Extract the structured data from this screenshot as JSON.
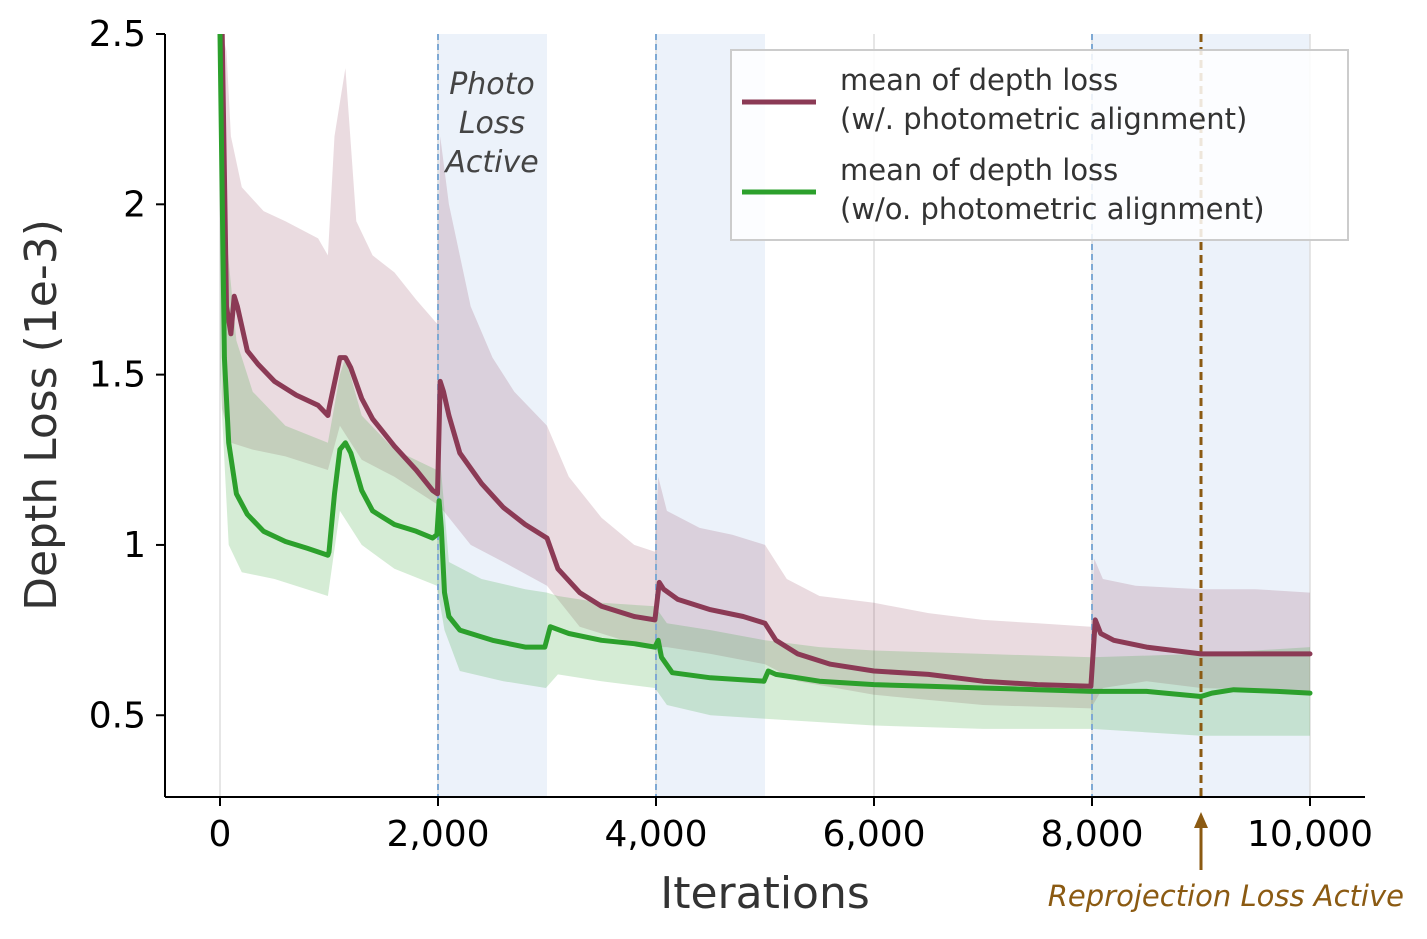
{
  "chart_data": {
    "type": "line",
    "xlabel": "Iterations",
    "ylabel": "Depth Loss (1e-3)",
    "xlim": [
      -500,
      10500
    ],
    "ylim": [
      0.26,
      2.5
    ],
    "x_ticks": [
      0,
      2000,
      4000,
      6000,
      8000,
      10000
    ],
    "x_tick_labels": [
      "0",
      "2,000",
      "4,000",
      "6,000",
      "8,000",
      "10,000"
    ],
    "y_ticks": [
      0.5,
      1,
      1.5,
      2,
      2.5
    ],
    "y_tick_labels": [
      "0.5",
      "1",
      "1.5",
      "2",
      "2.5"
    ],
    "grid": "vertical",
    "legend_position": "top-right",
    "shaded_regions": [
      [
        2000,
        3000
      ],
      [
        4000,
        5000
      ],
      [
        8000,
        10000
      ]
    ],
    "annotations": {
      "photo_lines": [
        "Photo",
        "Loss",
        "Active"
      ],
      "reprojection": {
        "text": "Reprojection Loss Active",
        "x": 9000
      }
    },
    "colors": {
      "with_alignment": "#8b3a55",
      "without_alignment": "#2ca02c",
      "shade": "#dce8f5",
      "dashed_blue": "#7ea9d4",
      "reprojection": "#8b5a12"
    },
    "series": [
      {
        "name": "mean of depth loss\n(w/. photometric alignment)",
        "legend_lines": [
          "mean of depth loss",
          "(w/. photometric alignment)"
        ],
        "color": "#8b3a55",
        "mean": [
          [
            20,
            2.5
          ],
          [
            60,
            1.7
          ],
          [
            100,
            1.62
          ],
          [
            130,
            1.73
          ],
          [
            160,
            1.7
          ],
          [
            250,
            1.57
          ],
          [
            350,
            1.53
          ],
          [
            500,
            1.48
          ],
          [
            700,
            1.44
          ],
          [
            900,
            1.41
          ],
          [
            990,
            1.38
          ],
          [
            1000,
            1.4
          ],
          [
            1100,
            1.55
          ],
          [
            1150,
            1.55
          ],
          [
            1200,
            1.52
          ],
          [
            1300,
            1.43
          ],
          [
            1400,
            1.37
          ],
          [
            1600,
            1.29
          ],
          [
            1800,
            1.22
          ],
          [
            1950,
            1.16
          ],
          [
            1995,
            1.15
          ],
          [
            2020,
            1.48
          ],
          [
            2050,
            1.45
          ],
          [
            2100,
            1.38
          ],
          [
            2200,
            1.27
          ],
          [
            2400,
            1.18
          ],
          [
            2600,
            1.11
          ],
          [
            2800,
            1.06
          ],
          [
            2950,
            1.03
          ],
          [
            3000,
            1.02
          ],
          [
            3100,
            0.93
          ],
          [
            3300,
            0.86
          ],
          [
            3500,
            0.82
          ],
          [
            3800,
            0.79
          ],
          [
            3990,
            0.78
          ],
          [
            4030,
            0.89
          ],
          [
            4070,
            0.87
          ],
          [
            4200,
            0.84
          ],
          [
            4500,
            0.81
          ],
          [
            4800,
            0.79
          ],
          [
            5000,
            0.77
          ],
          [
            5100,
            0.72
          ],
          [
            5300,
            0.68
          ],
          [
            5600,
            0.65
          ],
          [
            6000,
            0.63
          ],
          [
            6500,
            0.62
          ],
          [
            7000,
            0.6
          ],
          [
            7500,
            0.59
          ],
          [
            7990,
            0.585
          ],
          [
            8030,
            0.78
          ],
          [
            8080,
            0.74
          ],
          [
            8200,
            0.72
          ],
          [
            8500,
            0.7
          ],
          [
            9000,
            0.68
          ],
          [
            9500,
            0.68
          ],
          [
            10000,
            0.68
          ]
        ],
        "band_upper": [
          [
            20,
            2.5
          ],
          [
            60,
            2.45
          ],
          [
            100,
            2.2
          ],
          [
            200,
            2.05
          ],
          [
            400,
            1.98
          ],
          [
            600,
            1.95
          ],
          [
            900,
            1.9
          ],
          [
            990,
            1.85
          ],
          [
            1050,
            2.2
          ],
          [
            1150,
            2.4
          ],
          [
            1250,
            1.95
          ],
          [
            1400,
            1.85
          ],
          [
            1600,
            1.8
          ],
          [
            1800,
            1.72
          ],
          [
            1990,
            1.65
          ],
          [
            2020,
            2.2
          ],
          [
            2100,
            2.0
          ],
          [
            2300,
            1.7
          ],
          [
            2500,
            1.55
          ],
          [
            2700,
            1.45
          ],
          [
            3000,
            1.35
          ],
          [
            3200,
            1.2
          ],
          [
            3500,
            1.08
          ],
          [
            3800,
            1.0
          ],
          [
            3990,
            0.98
          ],
          [
            4020,
            1.2
          ],
          [
            4100,
            1.1
          ],
          [
            4400,
            1.05
          ],
          [
            4700,
            1.03
          ],
          [
            5000,
            1.0
          ],
          [
            5200,
            0.9
          ],
          [
            5500,
            0.85
          ],
          [
            6000,
            0.83
          ],
          [
            6500,
            0.8
          ],
          [
            7000,
            0.78
          ],
          [
            7500,
            0.77
          ],
          [
            7990,
            0.76
          ],
          [
            8020,
            0.96
          ],
          [
            8100,
            0.9
          ],
          [
            8400,
            0.88
          ],
          [
            9000,
            0.87
          ],
          [
            9500,
            0.87
          ],
          [
            10000,
            0.86
          ]
        ],
        "band_lower": [
          [
            20,
            1.4
          ],
          [
            100,
            1.3
          ],
          [
            300,
            1.28
          ],
          [
            600,
            1.26
          ],
          [
            990,
            1.22
          ],
          [
            1100,
            1.35
          ],
          [
            1300,
            1.25
          ],
          [
            1600,
            1.2
          ],
          [
            1990,
            1.12
          ],
          [
            2050,
            1.1
          ],
          [
            2300,
            1.0
          ],
          [
            2600,
            0.95
          ],
          [
            3000,
            0.88
          ],
          [
            3300,
            0.76
          ],
          [
            3700,
            0.72
          ],
          [
            3990,
            0.7
          ],
          [
            4100,
            0.7
          ],
          [
            4500,
            0.68
          ],
          [
            5000,
            0.65
          ],
          [
            5300,
            0.6
          ],
          [
            6000,
            0.56
          ],
          [
            7000,
            0.53
          ],
          [
            7990,
            0.52
          ],
          [
            8100,
            0.58
          ],
          [
            8500,
            0.6
          ],
          [
            9000,
            0.58
          ],
          [
            10000,
            0.57
          ]
        ]
      },
      {
        "name": "mean of depth loss\n(w/o. photometric alignment)",
        "legend_lines": [
          "mean of depth loss",
          "(w/o. photometric alignment)"
        ],
        "color": "#2ca02c",
        "mean": [
          [
            0,
            2.5
          ],
          [
            40,
            1.55
          ],
          [
            80,
            1.3
          ],
          [
            150,
            1.15
          ],
          [
            250,
            1.09
          ],
          [
            400,
            1.04
          ],
          [
            600,
            1.01
          ],
          [
            800,
            0.99
          ],
          [
            990,
            0.97
          ],
          [
            1000,
            0.98
          ],
          [
            1050,
            1.15
          ],
          [
            1100,
            1.28
          ],
          [
            1150,
            1.3
          ],
          [
            1200,
            1.27
          ],
          [
            1300,
            1.16
          ],
          [
            1400,
            1.1
          ],
          [
            1600,
            1.06
          ],
          [
            1800,
            1.04
          ],
          [
            1950,
            1.02
          ],
          [
            1990,
            1.03
          ],
          [
            2010,
            1.13
          ],
          [
            2030,
            1.05
          ],
          [
            2060,
            0.86
          ],
          [
            2100,
            0.79
          ],
          [
            2200,
            0.75
          ],
          [
            2500,
            0.72
          ],
          [
            2800,
            0.7
          ],
          [
            2980,
            0.7
          ],
          [
            3030,
            0.76
          ],
          [
            3200,
            0.74
          ],
          [
            3500,
            0.72
          ],
          [
            3800,
            0.71
          ],
          [
            3990,
            0.7
          ],
          [
            4020,
            0.72
          ],
          [
            4050,
            0.67
          ],
          [
            4150,
            0.625
          ],
          [
            4500,
            0.61
          ],
          [
            4990,
            0.6
          ],
          [
            5030,
            0.63
          ],
          [
            5100,
            0.62
          ],
          [
            5500,
            0.6
          ],
          [
            6000,
            0.59
          ],
          [
            6500,
            0.585
          ],
          [
            7000,
            0.58
          ],
          [
            7500,
            0.575
          ],
          [
            8000,
            0.57
          ],
          [
            8500,
            0.57
          ],
          [
            9000,
            0.555
          ],
          [
            9100,
            0.565
          ],
          [
            9300,
            0.575
          ],
          [
            9700,
            0.57
          ],
          [
            10000,
            0.565
          ]
        ],
        "band_upper": [
          [
            0,
            2.5
          ],
          [
            60,
            1.9
          ],
          [
            150,
            1.6
          ],
          [
            300,
            1.45
          ],
          [
            600,
            1.35
          ],
          [
            990,
            1.3
          ],
          [
            1100,
            1.5
          ],
          [
            1150,
            1.55
          ],
          [
            1300,
            1.38
          ],
          [
            1600,
            1.28
          ],
          [
            1990,
            1.22
          ],
          [
            2020,
            1.25
          ],
          [
            2100,
            0.95
          ],
          [
            2400,
            0.9
          ],
          [
            2800,
            0.87
          ],
          [
            3000,
            0.86
          ],
          [
            3100,
            0.85
          ],
          [
            3500,
            0.83
          ],
          [
            3990,
            0.82
          ],
          [
            4100,
            0.77
          ],
          [
            4500,
            0.75
          ],
          [
            5000,
            0.72
          ],
          [
            5500,
            0.7
          ],
          [
            6000,
            0.69
          ],
          [
            7000,
            0.68
          ],
          [
            8000,
            0.67
          ],
          [
            9000,
            0.68
          ],
          [
            10000,
            0.7
          ]
        ],
        "band_lower": [
          [
            0,
            1.5
          ],
          [
            80,
            1.0
          ],
          [
            200,
            0.92
          ],
          [
            500,
            0.9
          ],
          [
            990,
            0.85
          ],
          [
            1100,
            1.1
          ],
          [
            1300,
            1.0
          ],
          [
            1600,
            0.93
          ],
          [
            1990,
            0.88
          ],
          [
            2060,
            0.75
          ],
          [
            2200,
            0.63
          ],
          [
            2600,
            0.6
          ],
          [
            2990,
            0.58
          ],
          [
            3100,
            0.62
          ],
          [
            3500,
            0.6
          ],
          [
            3990,
            0.58
          ],
          [
            4100,
            0.53
          ],
          [
            4500,
            0.5
          ],
          [
            5000,
            0.49
          ],
          [
            5500,
            0.48
          ],
          [
            6000,
            0.47
          ],
          [
            7000,
            0.46
          ],
          [
            8000,
            0.46
          ],
          [
            9000,
            0.44
          ],
          [
            10000,
            0.44
          ]
        ]
      }
    ]
  }
}
